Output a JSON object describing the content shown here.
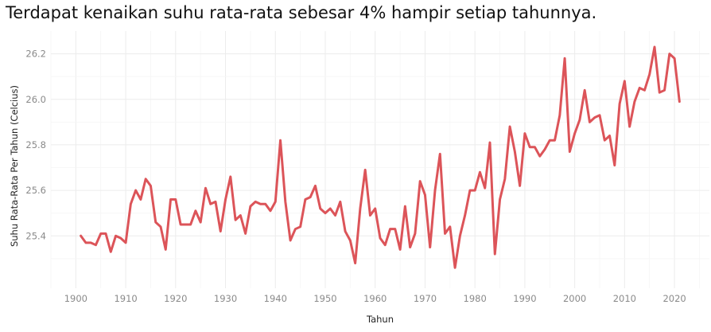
{
  "chart_data": {
    "type": "line",
    "title": "Terdapat kenaikan suhu rata-rata sebesar 4% hampir setiap tahunnya.",
    "xlabel": "Tahun",
    "ylabel": "Suhu Rata-Rata Per Tahun (Celcius)",
    "xlim": [
      1895,
      2027
    ],
    "ylim": [
      25.17,
      26.3
    ],
    "x_ticks": [
      1900,
      1910,
      1920,
      1930,
      1940,
      1950,
      1960,
      1970,
      1980,
      1990,
      2000,
      2010,
      2020
    ],
    "y_ticks": [
      25.4,
      25.6,
      25.8,
      26.0,
      26.2
    ],
    "x_tick_labels": [
      "1900",
      "1910",
      "1920",
      "1930",
      "1940",
      "1950",
      "1960",
      "1970",
      "1980",
      "1990",
      "2000",
      "2010",
      "2020"
    ],
    "y_tick_labels": [
      "25.4",
      "25.6",
      "25.8",
      "26.0",
      "26.2"
    ],
    "grid": true,
    "line_color": "#dc5459",
    "x": [
      1901,
      1902,
      1903,
      1904,
      1905,
      1906,
      1907,
      1908,
      1909,
      1910,
      1911,
      1912,
      1913,
      1914,
      1915,
      1916,
      1917,
      1918,
      1919,
      1920,
      1921,
      1922,
      1923,
      1924,
      1925,
      1926,
      1927,
      1928,
      1929,
      1930,
      1931,
      1932,
      1933,
      1934,
      1935,
      1936,
      1937,
      1938,
      1939,
      1940,
      1941,
      1942,
      1943,
      1944,
      1945,
      1946,
      1947,
      1948,
      1949,
      1950,
      1951,
      1952,
      1953,
      1954,
      1955,
      1956,
      1957,
      1958,
      1959,
      1960,
      1961,
      1962,
      1963,
      1964,
      1965,
      1966,
      1967,
      1968,
      1969,
      1970,
      1971,
      1972,
      1973,
      1974,
      1975,
      1976,
      1977,
      1978,
      1979,
      1980,
      1981,
      1982,
      1983,
      1984,
      1985,
      1986,
      1987,
      1988,
      1989,
      1990,
      1991,
      1992,
      1993,
      1994,
      1995,
      1996,
      1997,
      1998,
      1999,
      2000,
      2001,
      2002,
      2003,
      2004,
      2005,
      2006,
      2007,
      2008,
      2009,
      2010,
      2011,
      2012,
      2013,
      2014,
      2015,
      2016,
      2017,
      2018,
      2019,
      2020,
      2021
    ],
    "y": [
      25.4,
      25.37,
      25.37,
      25.36,
      25.41,
      25.41,
      25.33,
      25.4,
      25.39,
      25.37,
      25.54,
      25.6,
      25.56,
      25.65,
      25.62,
      25.46,
      25.44,
      25.34,
      25.56,
      25.56,
      25.45,
      25.45,
      25.45,
      25.51,
      25.46,
      25.61,
      25.54,
      25.55,
      25.42,
      25.56,
      25.66,
      25.47,
      25.49,
      25.41,
      25.53,
      25.55,
      25.54,
      25.54,
      25.51,
      25.55,
      25.82,
      25.55,
      25.38,
      25.43,
      25.44,
      25.56,
      25.57,
      25.62,
      25.52,
      25.5,
      25.52,
      25.49,
      25.55,
      25.42,
      25.38,
      25.28,
      25.52,
      25.69,
      25.49,
      25.52,
      25.39,
      25.36,
      25.43,
      25.43,
      25.34,
      25.53,
      25.35,
      25.41,
      25.64,
      25.58,
      25.35,
      25.6,
      25.76,
      25.41,
      25.44,
      25.26,
      25.4,
      25.49,
      25.6,
      25.6,
      25.68,
      25.61,
      25.81,
      25.32,
      25.56,
      25.65,
      25.88,
      25.77,
      25.62,
      25.85,
      25.79,
      25.79,
      25.75,
      25.78,
      25.82,
      25.82,
      25.93,
      26.18,
      25.77,
      25.85,
      25.91,
      26.04,
      25.9,
      25.92,
      25.93,
      25.82,
      25.84,
      25.71,
      25.98,
      26.08,
      25.88,
      25.99,
      26.05,
      26.04,
      26.11,
      26.23,
      26.03,
      26.04,
      26.2,
      26.18,
      25.99
    ]
  }
}
